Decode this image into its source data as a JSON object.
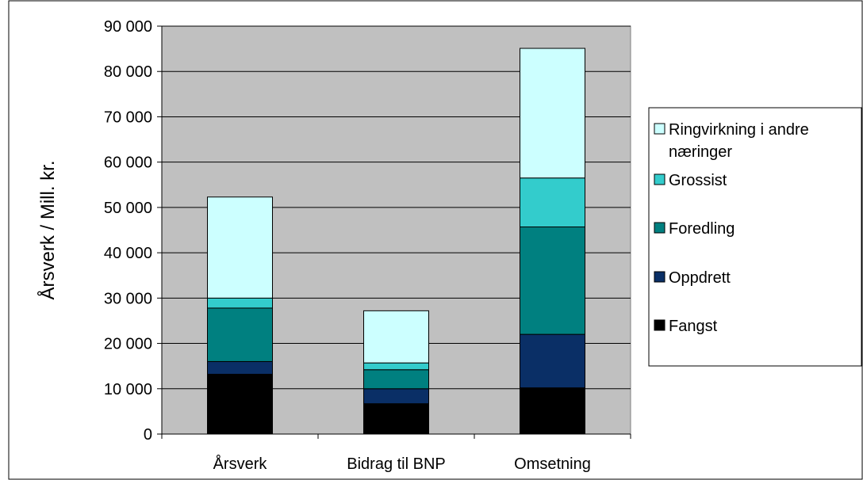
{
  "chart_data": {
    "type": "bar",
    "stacked": true,
    "categories": [
      "Årsverk",
      "Bidrag til BNP",
      "Omsetning"
    ],
    "series": [
      {
        "name": "Fangst",
        "color": "#000000",
        "values": [
          13200,
          6700,
          10200
        ]
      },
      {
        "name": "Oppdrett",
        "color": "#0a2f66",
        "values": [
          2800,
          3300,
          11800
        ]
      },
      {
        "name": "Foredling",
        "color": "#008080",
        "values": [
          11800,
          4200,
          23700
        ]
      },
      {
        "name": "Grossist",
        "color": "#33cccc",
        "values": [
          2200,
          1500,
          10800
        ]
      },
      {
        "name": "Ringvirkning i andre næringer",
        "color": "#ccffff",
        "values": [
          22300,
          11500,
          28600
        ]
      }
    ],
    "ylabel": "Årsverk / Mill. kr.",
    "xlabel": "",
    "title": "",
    "ylim": [
      0,
      90000
    ],
    "yticks": [
      0,
      10000,
      20000,
      30000,
      40000,
      50000,
      60000,
      70000,
      80000,
      90000
    ],
    "ytick_labels": [
      "0",
      "10 000",
      "20 000",
      "30 000",
      "40 000",
      "50 000",
      "60 000",
      "70 000",
      "80 000",
      "90 000"
    ],
    "grid": true,
    "plot_background": "#c0c0c0",
    "legend": {
      "placement": "right",
      "entries": [
        {
          "series": "Ringvirkning i andre næringer",
          "lines": [
            "Ringvirkning i andre",
            "næringer"
          ]
        },
        {
          "series": "Grossist",
          "lines": [
            "Grossist"
          ]
        },
        {
          "series": "Foredling",
          "lines": [
            "Foredling"
          ]
        },
        {
          "series": "Oppdrett",
          "lines": [
            "Oppdrett"
          ]
        },
        {
          "series": "Fangst",
          "lines": [
            "Fangst"
          ]
        }
      ]
    }
  }
}
